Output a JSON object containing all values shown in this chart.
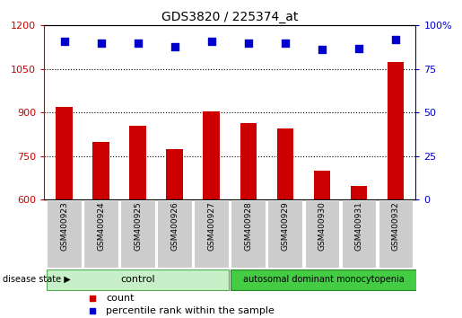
{
  "title": "GDS3820 / 225374_at",
  "samples": [
    "GSM400923",
    "GSM400924",
    "GSM400925",
    "GSM400926",
    "GSM400927",
    "GSM400928",
    "GSM400929",
    "GSM400930",
    "GSM400931",
    "GSM400932"
  ],
  "counts": [
    920,
    800,
    855,
    775,
    905,
    865,
    845,
    700,
    648,
    1075
  ],
  "percentile_ranks": [
    91,
    90,
    90,
    88,
    91,
    90,
    90,
    86,
    87,
    92
  ],
  "ylim_left": [
    600,
    1200
  ],
  "yticks_left": [
    600,
    750,
    900,
    1050,
    1200
  ],
  "ylim_right": [
    0,
    100
  ],
  "yticks_right": [
    0,
    25,
    50,
    75,
    100
  ],
  "bar_color": "#cc0000",
  "dot_color": "#0000cc",
  "grid_vals": [
    750,
    900,
    1050
  ],
  "group_labels": [
    "control",
    "autosomal dominant monocytopenia"
  ],
  "ctrl_color_light": "#c8f0c8",
  "ctrl_color_border": "#50aa50",
  "adm_color": "#44cc44",
  "adm_color_border": "#228822",
  "disease_state_label": "disease state",
  "legend_count_label": "count",
  "legend_pct_label": "percentile rank within the sample",
  "tick_color_left": "#cc0000",
  "tick_color_right": "#0000cc",
  "bg_color": "#ffffff",
  "xticklabel_bg": "#cccccc",
  "ctrl_samples": 5,
  "adm_samples": 5
}
